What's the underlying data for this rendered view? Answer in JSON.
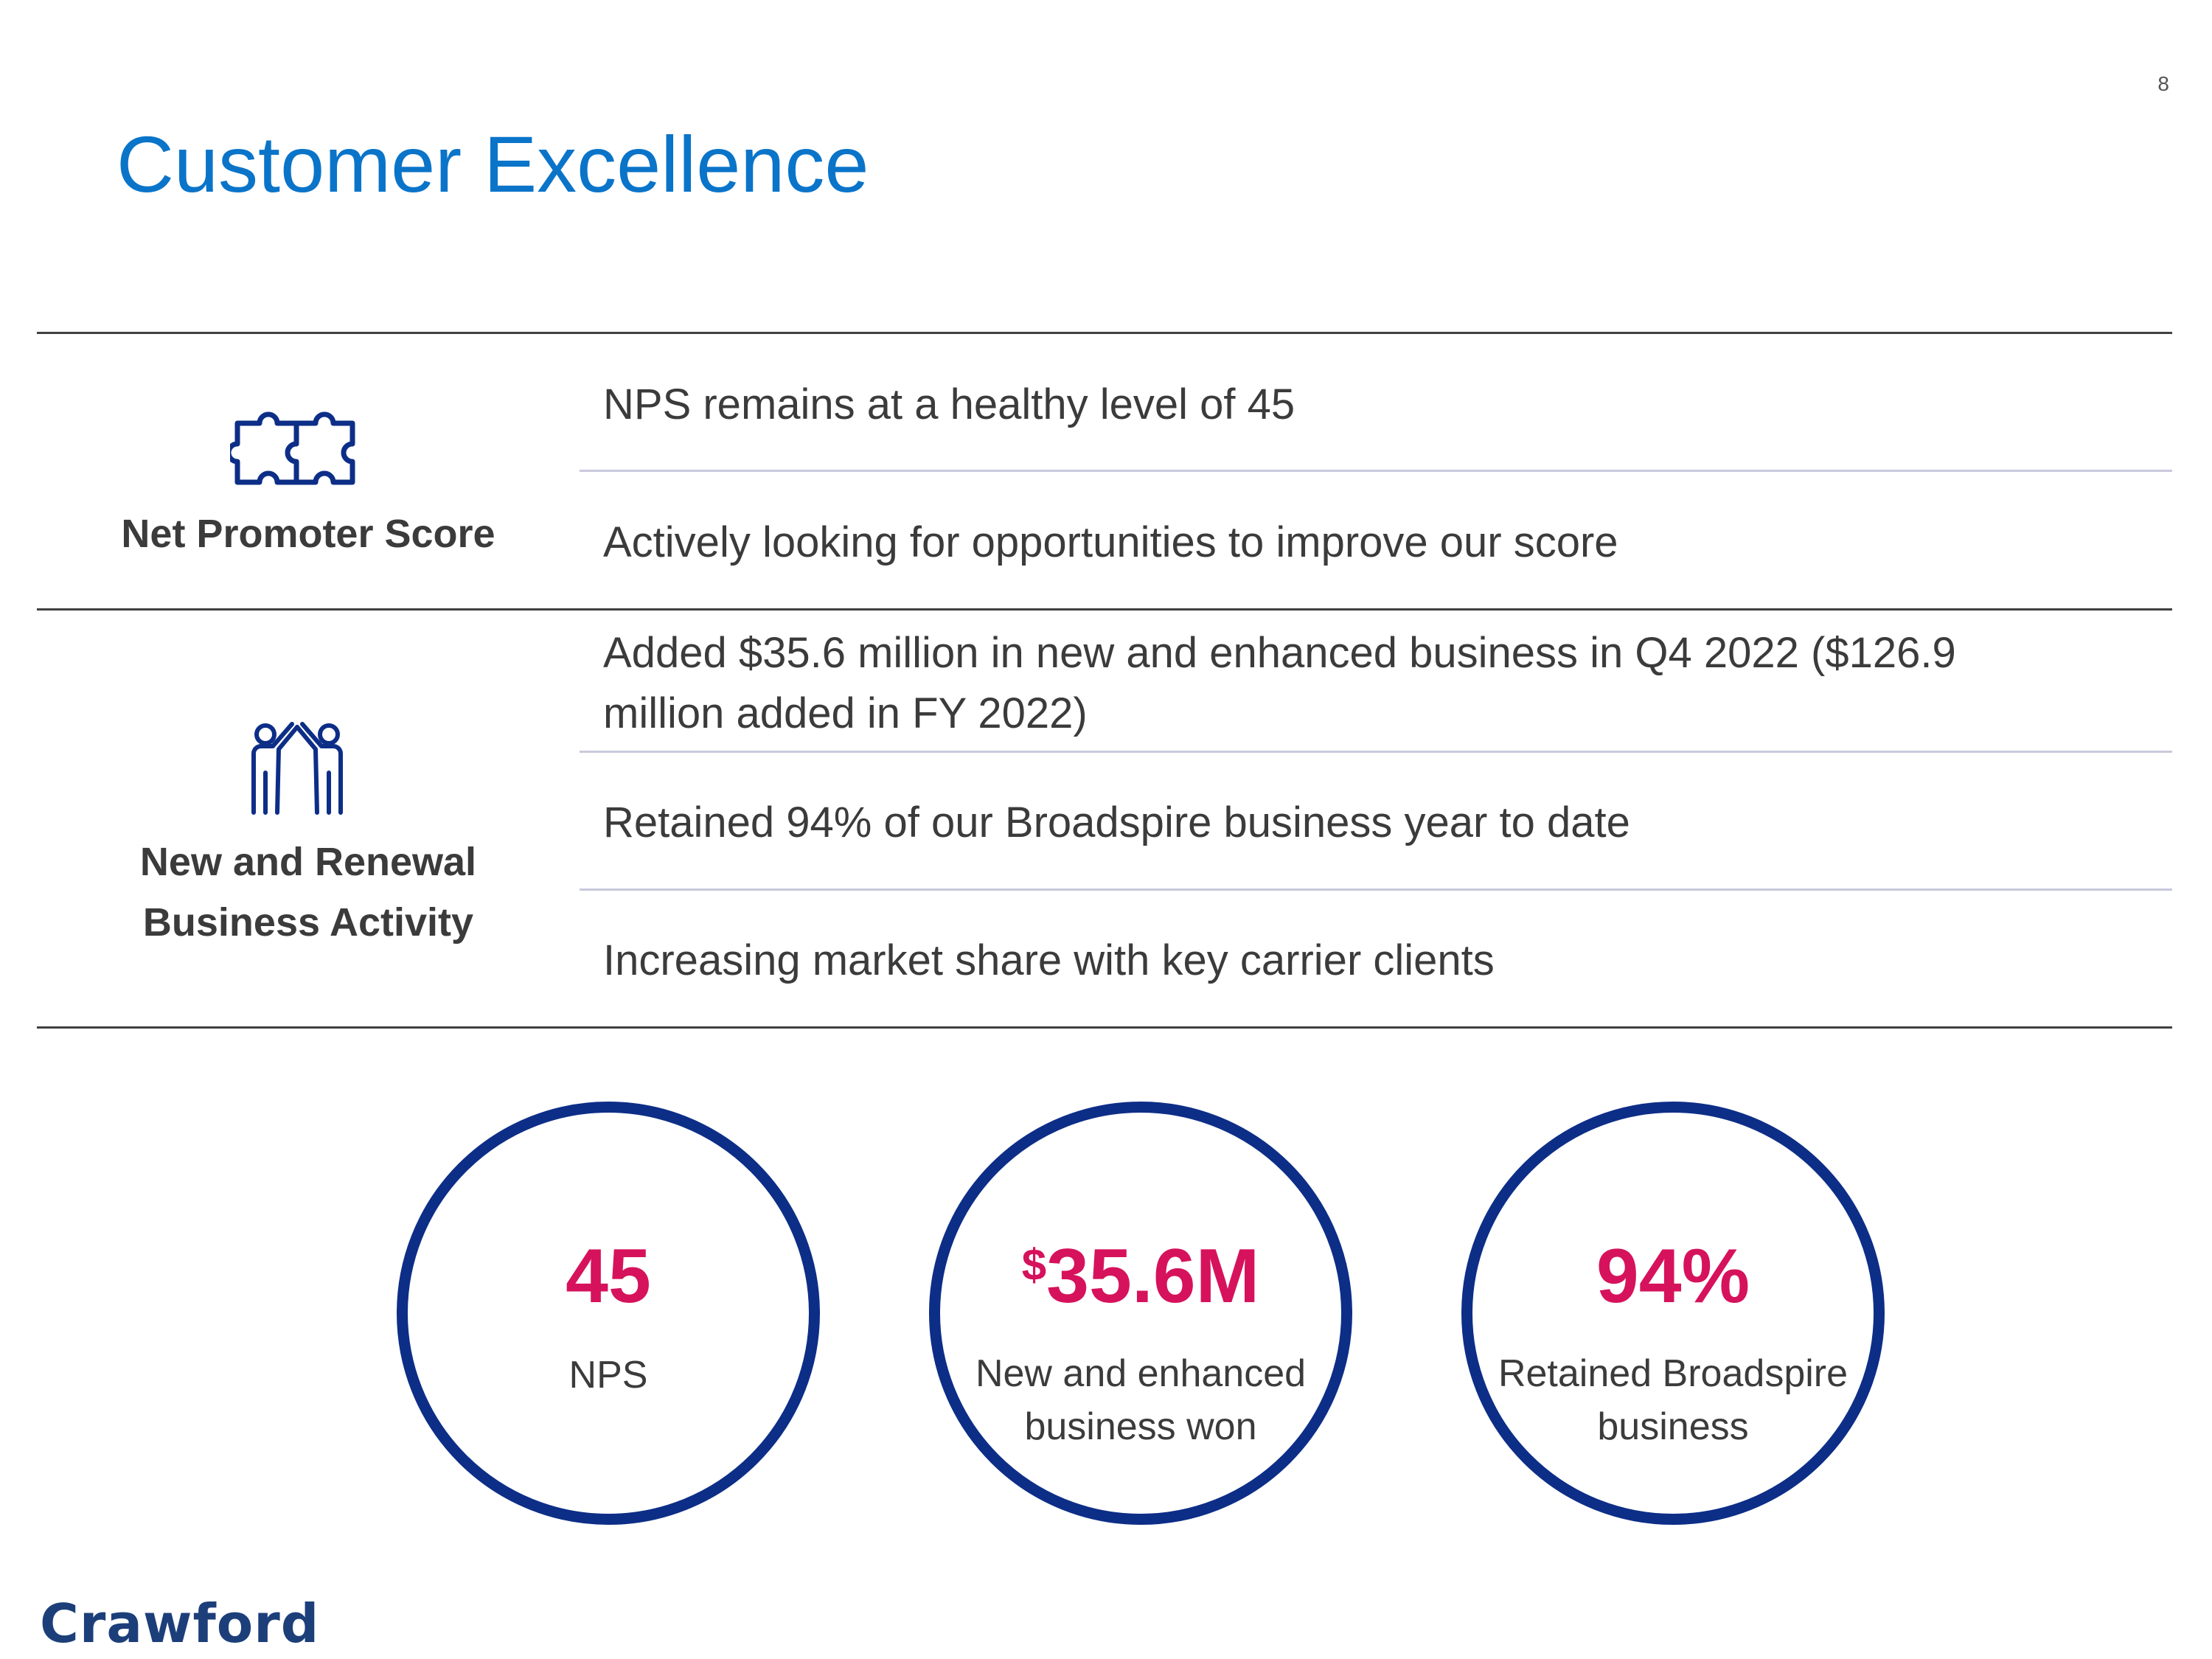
{
  "page_number": "8",
  "title": "Customer Excellence",
  "sections": [
    {
      "icon": "puzzle-icon",
      "label_lines": [
        "Net Promoter Score"
      ],
      "bullets": [
        "NPS remains at a healthy level of 45",
        "Actively looking for opportunities to improve our score"
      ]
    },
    {
      "icon": "high-five-icon",
      "label_lines": [
        "New and Renewal",
        "Business Activity"
      ],
      "bullets": [
        "Added $35.6 million in new and enhanced business in Q4 2022 ($126.9",
        "million added in FY 2022)",
        "Retained 94% of our Broadspire business year to date",
        "Increasing market share with key carrier clients"
      ]
    }
  ],
  "stats": [
    {
      "prefix": "",
      "value": "45",
      "caption_lines": [
        "NPS"
      ]
    },
    {
      "prefix": "$",
      "value": "35.6M",
      "caption_lines": [
        "New and enhanced",
        "business won"
      ]
    },
    {
      "prefix": "",
      "value": "94%",
      "caption_lines": [
        "Retained Broadspire",
        "business"
      ]
    }
  ],
  "colors": {
    "title": "#0a74c9",
    "accent": "#d6125c",
    "circle_border": "#0d2e87",
    "icon": "#0d2e87",
    "logo": "#1c3f7a"
  },
  "logo_text": "Crawford"
}
